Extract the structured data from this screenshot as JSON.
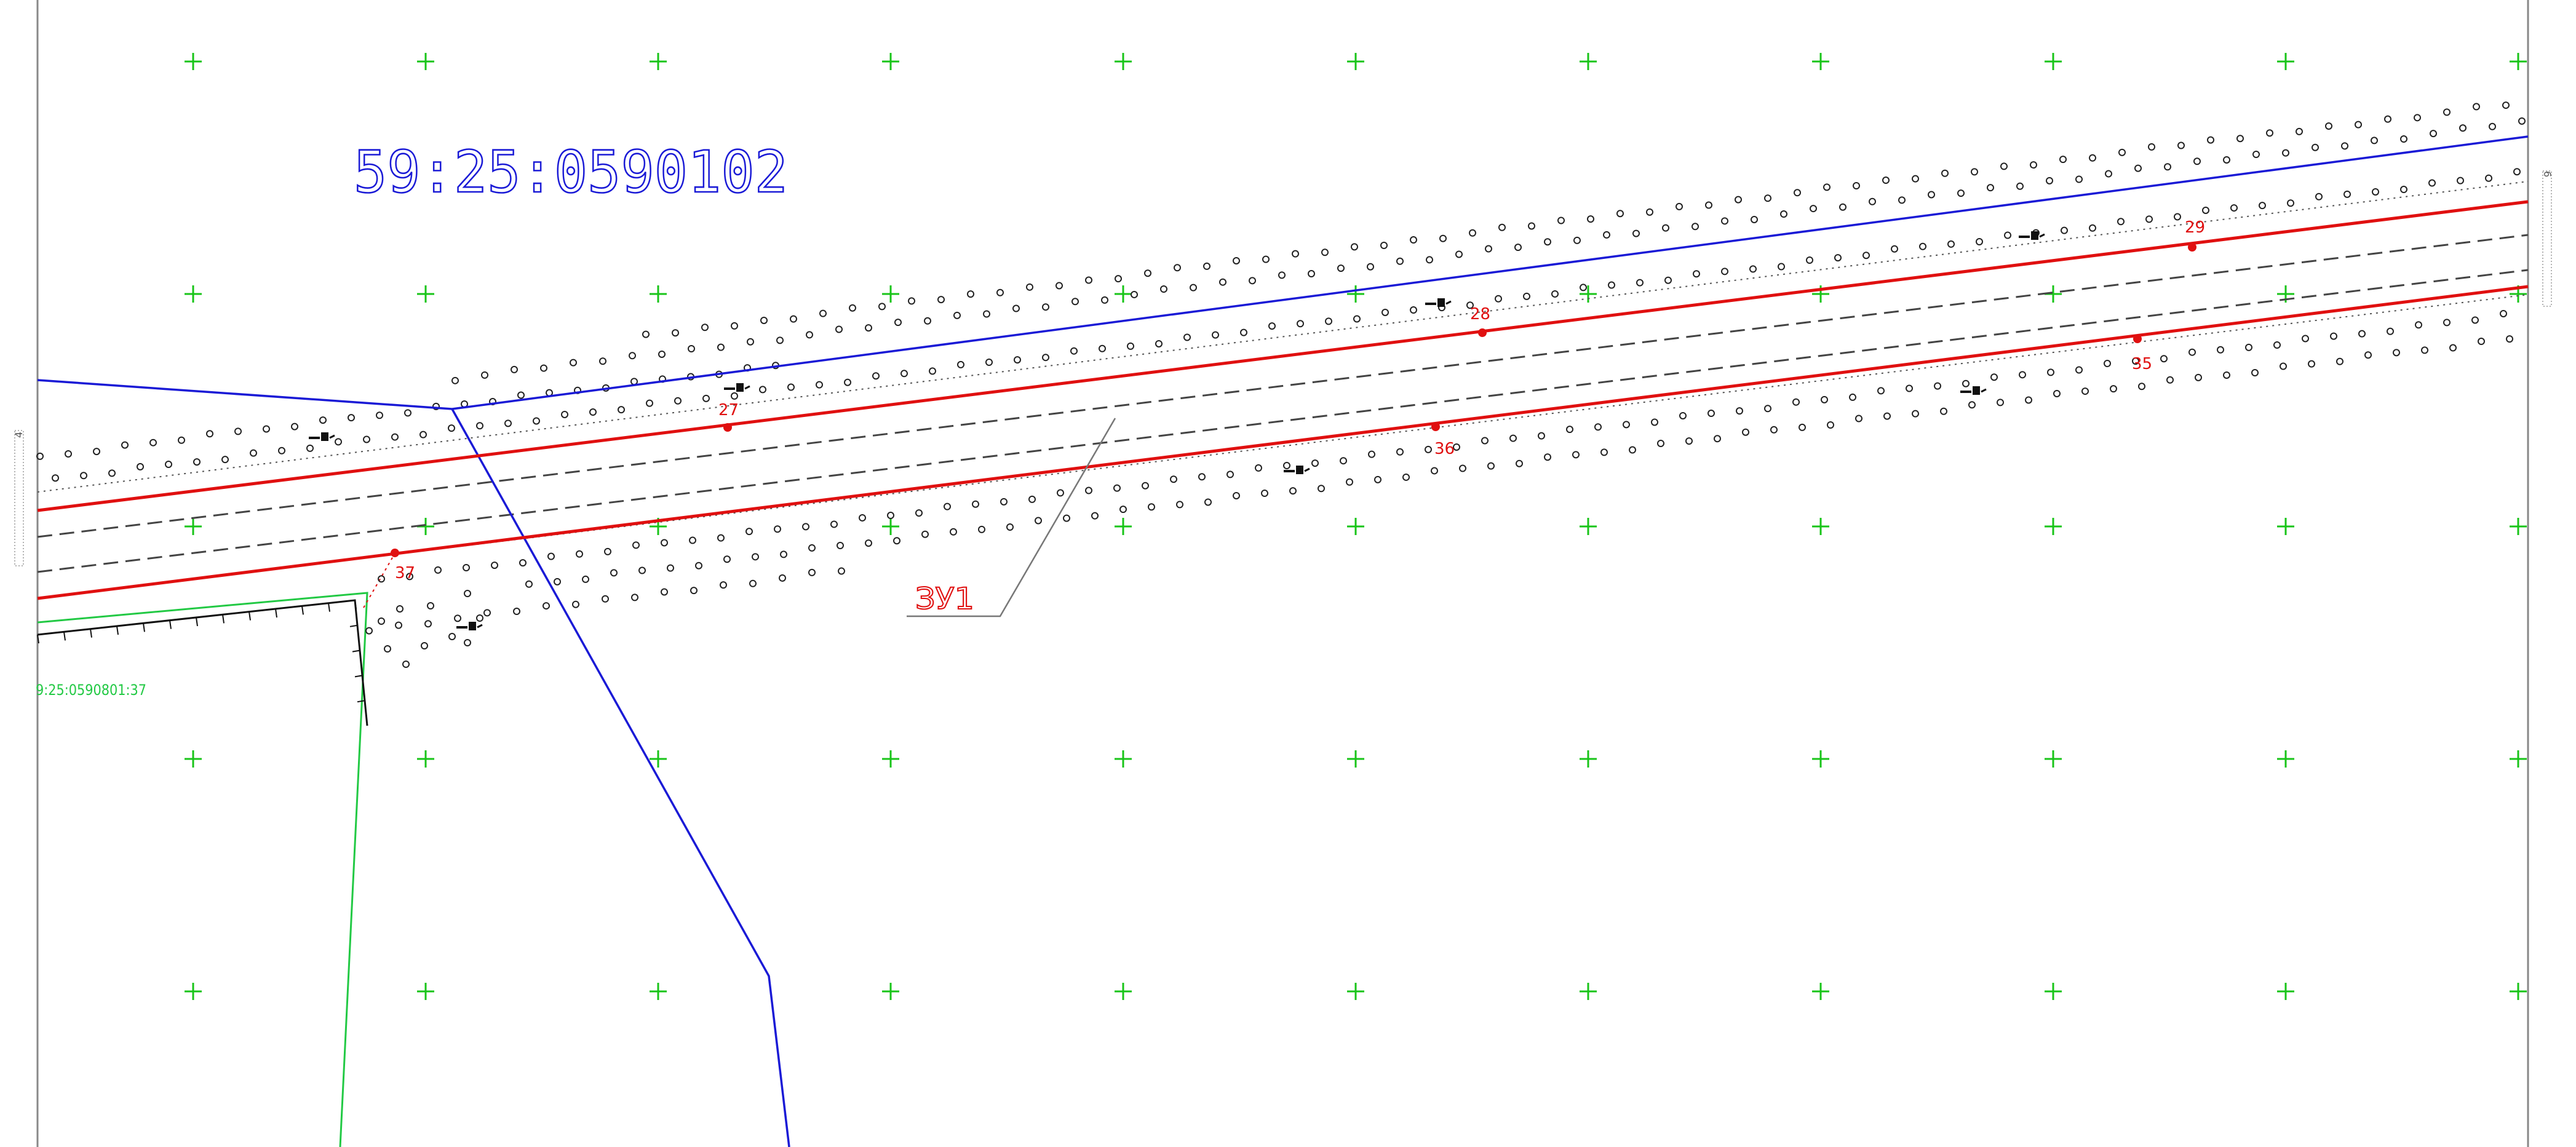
{
  "cadastral_block": "59:25:0590102",
  "zone_label": "ЗУ1",
  "neighbor_parcel": "9:25:0590801:37",
  "point_labels": [
    "27",
    "28",
    "29",
    "35",
    "36",
    "37"
  ],
  "sheet_refs": {
    "left": "4",
    "right": "6"
  },
  "colors": {
    "block_boundary": "#1a1ad6",
    "parcel_boundary": "#e01010",
    "grid_cross": "#18c418",
    "neighbor": "#22c944",
    "frame": "#888888",
    "annotation": "#777777"
  }
}
